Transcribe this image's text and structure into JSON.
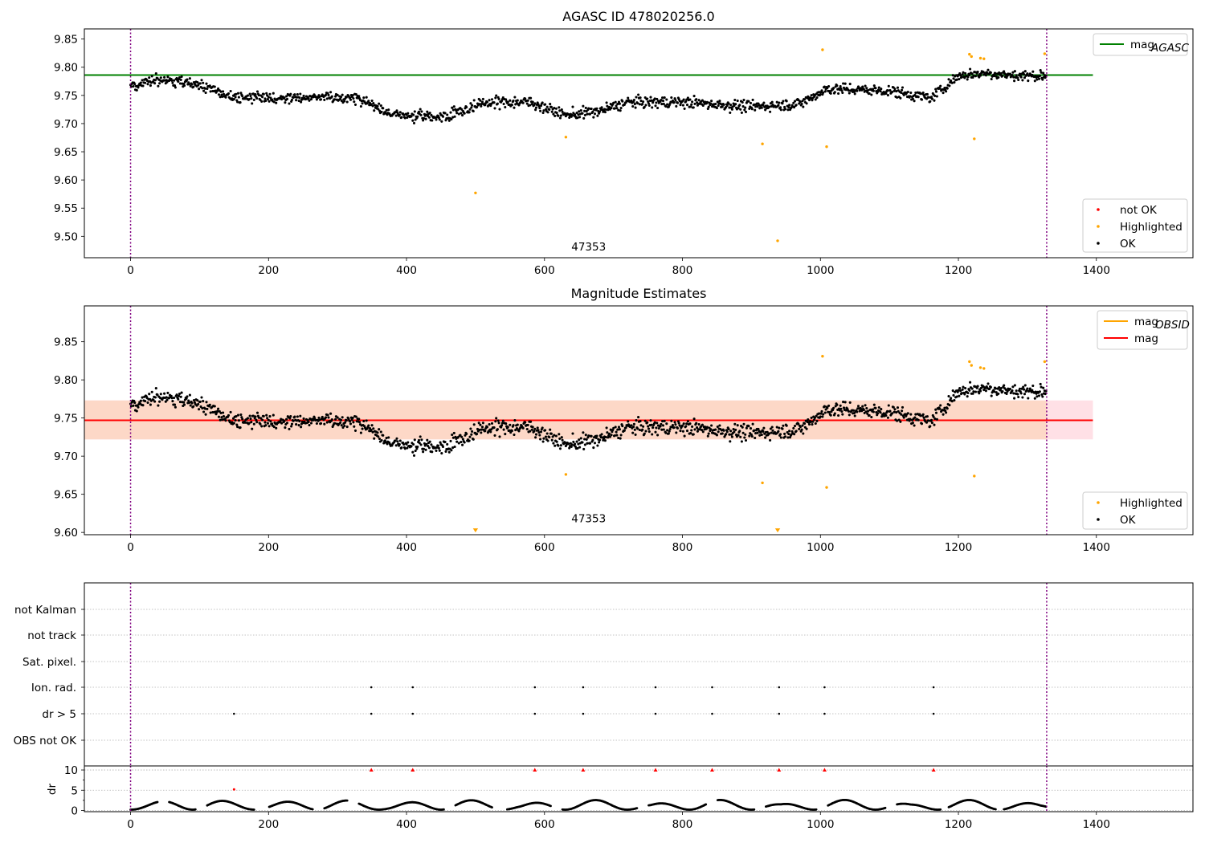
{
  "figure": {
    "colors": {
      "ok": "#000000",
      "highlighted": "#ffa500",
      "not_ok": "#ff0000",
      "agasc_line": "#008000",
      "mag_line": "#ff0000",
      "mag_obsid_line": "#ffa500",
      "band_inner": "#fdd8c7",
      "band_outer": "#ffe0e6",
      "obs_boundary": "#800080",
      "grid": "#b0b0b0"
    }
  },
  "chart_data": [
    {
      "type": "scatter",
      "title": "AGASC ID 478020256.0",
      "xlim": [
        -67,
        1540
      ],
      "ylim": [
        9.462,
        9.868
      ],
      "xticks": [
        0,
        200,
        400,
        600,
        800,
        1000,
        1200,
        1400
      ],
      "yticks": [
        9.5,
        9.55,
        9.6,
        9.65,
        9.7,
        9.75,
        9.8,
        9.85
      ],
      "xtick_labels": [
        "0",
        "200",
        "400",
        "600",
        "800",
        "1000",
        "1200",
        "1400"
      ],
      "ytick_labels": [
        "9.50",
        "9.55",
        "9.60",
        "9.65",
        "9.70",
        "9.75",
        "9.80",
        "9.85"
      ],
      "hlines": [
        {
          "name": "mag_AGASC",
          "y": 9.786,
          "x": [
            -67,
            1395
          ],
          "color": "#008000"
        }
      ],
      "obs_boundaries": [
        0,
        1328
      ],
      "annotations": [
        {
          "text": "47353",
          "x": 664,
          "y": 9.482
        }
      ],
      "legend_upper": {
        "position": "upper-right",
        "entries": [
          {
            "label": "mag",
            "sub": "AGASC",
            "kind": "line",
            "color": "#008000"
          }
        ]
      },
      "legend_lower": {
        "position": "lower-right",
        "entries": [
          {
            "label": "not OK",
            "kind": "dot",
            "color": "#ff0000"
          },
          {
            "label": "Highlighted",
            "kind": "dot",
            "color": "#ffa500"
          },
          {
            "label": "OK",
            "kind": "dot",
            "color": "#000000"
          }
        ]
      },
      "series": [
        {
          "name": "OK",
          "n": 1328,
          "color": "#000000",
          "trend_x": [
            0,
            40,
            100,
            150,
            250,
            330,
            380,
            450,
            520,
            580,
            630,
            680,
            720,
            800,
            900,
            970,
            1010,
            1100,
            1160,
            1200,
            1240,
            1280,
            1328
          ],
          "trend_y": [
            9.765,
            9.778,
            9.768,
            9.745,
            9.747,
            9.745,
            9.715,
            9.712,
            9.738,
            9.738,
            9.715,
            9.722,
            9.738,
            9.738,
            9.73,
            9.735,
            9.762,
            9.758,
            9.745,
            9.785,
            9.79,
            9.785,
            9.785
          ],
          "scatter": 0.02
        },
        {
          "name": "Highlighted",
          "color": "#ffa500",
          "points": [
            [
              500,
              9.577
            ],
            [
              631,
              9.676
            ],
            [
              916,
              9.664
            ],
            [
              938,
              9.492
            ],
            [
              1003,
              9.831
            ],
            [
              1009,
              9.659
            ],
            [
              1216,
              9.823
            ],
            [
              1219,
              9.819
            ],
            [
              1223,
              9.673
            ],
            [
              1232,
              9.816
            ],
            [
              1237,
              9.815
            ],
            [
              1325,
              9.824
            ]
          ]
        }
      ]
    },
    {
      "type": "scatter",
      "title": "Magnitude Estimates",
      "xlim": [
        -67,
        1540
      ],
      "ylim": [
        9.597,
        9.897
      ],
      "xticks": [
        0,
        200,
        400,
        600,
        800,
        1000,
        1200,
        1400
      ],
      "yticks": [
        9.6,
        9.65,
        9.7,
        9.75,
        9.8,
        9.85
      ],
      "xtick_labels": [
        "0",
        "200",
        "400",
        "600",
        "800",
        "1000",
        "1200",
        "1400"
      ],
      "ytick_labels": [
        "9.60",
        "9.65",
        "9.70",
        "9.75",
        "9.80",
        "9.85"
      ],
      "hlines": [
        {
          "name": "mag",
          "y": 9.747,
          "x": [
            -67,
            1395
          ],
          "color": "#ff0000"
        }
      ],
      "bands": [
        {
          "x": [
            -67,
            1395
          ],
          "y": [
            9.722,
            9.773
          ],
          "color": "#ffe0e6"
        },
        {
          "x": [
            -67,
            1328
          ],
          "y": [
            9.722,
            9.773
          ],
          "color": "#fdd8c7"
        }
      ],
      "obs_boundaries": [
        0,
        1328
      ],
      "annotations": [
        {
          "text": "47353",
          "x": 664,
          "y": 9.607
        }
      ],
      "legend_upper": {
        "position": "upper-right",
        "entries": [
          {
            "label": "mag",
            "sub": "OBSID",
            "kind": "line",
            "color": "#ffa500"
          },
          {
            "label": "mag",
            "kind": "line",
            "color": "#ff0000"
          }
        ]
      },
      "legend_lower": {
        "position": "lower-right",
        "entries": [
          {
            "label": "Highlighted",
            "kind": "dot",
            "color": "#ffa500"
          },
          {
            "label": "OK",
            "kind": "dot",
            "color": "#000000"
          }
        ]
      },
      "series": [
        {
          "name": "OK",
          "n": 1328,
          "color": "#000000",
          "same_as_panel": 0
        },
        {
          "name": "Highlighted",
          "color": "#ffa500",
          "points": [
            [
              631,
              9.676
            ],
            [
              916,
              9.665
            ],
            [
              1003,
              9.831
            ],
            [
              1009,
              9.659
            ],
            [
              1216,
              9.824
            ],
            [
              1219,
              9.819
            ],
            [
              1223,
              9.674
            ],
            [
              1232,
              9.816
            ],
            [
              1237,
              9.815
            ],
            [
              1325,
              9.824
            ]
          ]
        },
        {
          "name": "Highlighted (below range)",
          "color": "#ffa500",
          "marker": "triangle-down",
          "points": [
            [
              500,
              9.6
            ],
            [
              938,
              9.6
            ]
          ]
        }
      ]
    },
    {
      "type": "scatter",
      "title": "",
      "xlim": [
        -67,
        1540
      ],
      "categories": [
        "not Kalman",
        "not track",
        "Sat. pixel.",
        "Ion. rad.",
        "dr > 5",
        "OBS not OK"
      ],
      "flags": {
        "Ion. rad.": [
          349,
          409,
          586,
          656,
          761,
          843,
          940,
          1006,
          1164
        ],
        "dr > 5": [
          150,
          349,
          409,
          586,
          656,
          761,
          843,
          940,
          1006,
          1164
        ]
      },
      "obs_boundaries": [
        0,
        1328
      ]
    },
    {
      "type": "scatter",
      "title": "",
      "xlim": [
        -67,
        1540
      ],
      "ylim": [
        -0.3,
        11
      ],
      "xticks": [
        0,
        200,
        400,
        600,
        800,
        1000,
        1200,
        1400
      ],
      "yticks": [
        0,
        5,
        10
      ],
      "xtick_labels": [
        "0",
        "200",
        "400",
        "600",
        "800",
        "1000",
        "1200",
        "1400"
      ],
      "ytick_labels": [
        "0",
        "5",
        "10"
      ],
      "ylabel": "dr",
      "obs_boundaries": [
        0,
        1328
      ],
      "series": [
        {
          "name": "dr",
          "color": "#000000",
          "n": 1328,
          "min": 0.2,
          "max": 2.6,
          "gaps": [
            [
              40,
              55
            ],
            [
              95,
              110
            ],
            [
              180,
              200
            ],
            [
              265,
              280
            ],
            [
              315,
              330
            ],
            [
              455,
              470
            ],
            [
              525,
              545
            ],
            [
              610,
              625
            ],
            [
              735,
              750
            ],
            [
              835,
              850
            ],
            [
              905,
              920
            ],
            [
              995,
              1010
            ],
            [
              1095,
              1110
            ],
            [
              1175,
              1185
            ],
            [
              1255,
              1265
            ]
          ]
        },
        {
          "name": "clipped (> 10)",
          "color": "#ff0000",
          "marker": "triangle-up",
          "points": [
            [
              349,
              10
            ],
            [
              409,
              10
            ],
            [
              586,
              10
            ],
            [
              656,
              10
            ],
            [
              761,
              10
            ],
            [
              843,
              10
            ],
            [
              940,
              10
            ],
            [
              1006,
              10
            ],
            [
              1164,
              10
            ]
          ]
        },
        {
          "name": "dr outlier",
          "color": "#ff0000",
          "points": [
            [
              150,
              5.2
            ]
          ]
        }
      ]
    }
  ]
}
